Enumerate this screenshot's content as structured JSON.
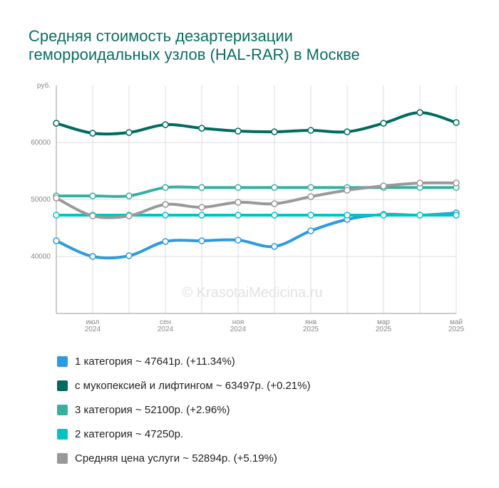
{
  "chart_data": {
    "type": "line",
    "title": "Средняя стоимость дезартеризации геморроидальных узлов (HAL-RAR) в Москве",
    "y_label": "руб.",
    "watermark": "© KrasotaiMedicina.ru",
    "categories": [
      null,
      "июл 2024",
      null,
      "сен 2024",
      null,
      "ноя 2024",
      null,
      "янв 2025",
      null,
      "мар 2025",
      null,
      "май 2025"
    ],
    "ylim": [
      30000,
      70000
    ],
    "yticks": [
      40000,
      50000,
      60000
    ],
    "grid": true,
    "series": [
      {
        "name": "1 категория ~ 47641р. (+11.34%)",
        "color": "#2d9be0",
        "values": [
          42750,
          40000,
          40125,
          42625,
          42750,
          42875,
          41750,
          44500,
          46500,
          47375,
          47250,
          47641
        ]
      },
      {
        "name": "с мукопексией и лифтингом ~ 63497р. (+0.21%)",
        "color": "#006b5f",
        "values": [
          63375,
          61625,
          61750,
          63125,
          62500,
          62000,
          61875,
          62125,
          61875,
          63375,
          65250,
          63497
        ]
      },
      {
        "name": "3 категория ~ 52100р. (+2.96%)",
        "color": "#37b0a0",
        "values": [
          50625,
          50625,
          50625,
          52100,
          52100,
          52100,
          52100,
          52100,
          52100,
          52100,
          52100,
          52100
        ]
      },
      {
        "name": "2 категория ~ 47250р.",
        "color": "#00c4c4",
        "values": [
          47250,
          47250,
          47250,
          47250,
          47250,
          47250,
          47250,
          47250,
          47250,
          47250,
          47250,
          47250
        ]
      },
      {
        "name": "Средняя цена услуги ~ 52894р. (+5.19%)",
        "color": "#999999",
        "values": [
          50250,
          47125,
          47125,
          49125,
          48625,
          49500,
          49250,
          50500,
          51625,
          52375,
          52875,
          52894
        ]
      }
    ]
  }
}
